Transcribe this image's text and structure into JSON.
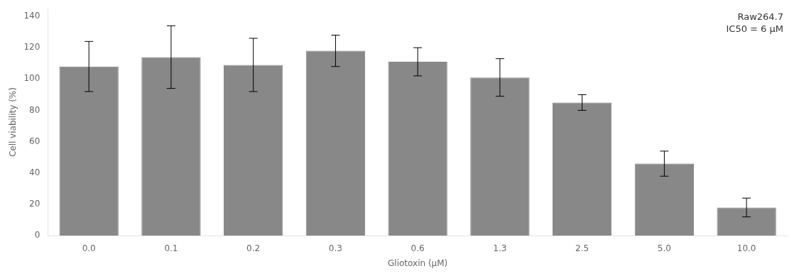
{
  "chart_data": {
    "type": "bar",
    "categories": [
      "0.0",
      "0.1",
      "0.2",
      "0.3",
      "0.6",
      "1.3",
      "2.5",
      "5.0",
      "10.0"
    ],
    "values": [
      108,
      114,
      109,
      118,
      111,
      101,
      85,
      46,
      18
    ],
    "errors": [
      16,
      20,
      17,
      10,
      9,
      12,
      5,
      8,
      6
    ],
    "color": "#888888",
    "xlabel": "Gliotoxin (μM)",
    "ylabel": "Cell viability (%)",
    "ylim": [
      0,
      145
    ],
    "yticks": [
      0,
      20,
      40,
      60,
      80,
      100,
      120,
      140
    ],
    "annotation": "Raw264.7\nIC50 = 6 μM",
    "grid": false
  }
}
